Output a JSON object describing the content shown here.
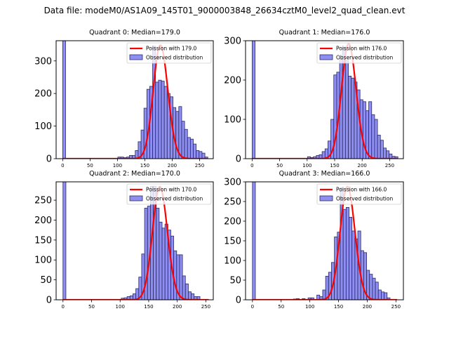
{
  "suptitle": "Data file: modeM0/AS1A09_145T01_9000003848_26634cztM0_level2_quad_clean.evt",
  "colors": {
    "bar_fill": "#7b7bf0",
    "bar_edge": "#2a2a66",
    "poisson_line": "#ff0000"
  },
  "chart_data": [
    {
      "type": "bar",
      "title": "Quadrant 0: Median=179.0",
      "legend": [
        "Poission with 179.0",
        "Observed distribution"
      ],
      "legend_position": "top-right",
      "xlim": [
        -12,
        275
      ],
      "ylim": [
        0,
        362
      ],
      "xticks": [
        0,
        50,
        100,
        150,
        200,
        250
      ],
      "yticks": [
        0,
        100,
        200,
        300
      ],
      "bin_width": 5.3,
      "bin_starts": [
        0,
        100.7,
        106.0,
        111.3,
        116.6,
        121.9,
        127.2,
        132.5,
        137.8,
        143.1,
        148.4,
        153.7,
        159.0,
        164.3,
        169.6,
        174.9,
        180.2,
        185.5,
        190.8,
        196.1,
        201.4,
        206.7,
        212.0,
        217.3,
        222.6,
        227.9,
        233.2,
        238.5,
        243.8,
        249.1,
        254.4,
        259.7
      ],
      "counts": [
        400,
        5,
        5,
        3,
        5,
        10,
        10,
        25,
        52,
        88,
        155,
        213,
        222,
        345,
        235,
        241,
        238,
        222,
        200,
        190,
        157,
        145,
        160,
        115,
        90,
        65,
        60,
        45,
        25,
        22,
        17,
        5
      ],
      "poisson_mean": 179.0,
      "poisson_peak": 348,
      "poisson_range": [
        0,
        265
      ]
    },
    {
      "type": "bar",
      "title": "Quadrant 1: Median=176.0",
      "legend": [
        "Poission with 176.0",
        "Observed distribution"
      ],
      "legend_position": "top-right",
      "xlim": [
        -12,
        275
      ],
      "ylim": [
        0,
        300
      ],
      "xticks": [
        0,
        50,
        100,
        150,
        200,
        250
      ],
      "yticks": [
        0,
        100,
        200,
        300
      ],
      "bin_width": 5.3,
      "bin_starts": [
        0,
        26.5,
        68.9,
        100.7,
        106.0,
        111.3,
        116.6,
        121.9,
        127.2,
        132.5,
        137.8,
        143.1,
        148.4,
        153.7,
        159.0,
        164.3,
        169.6,
        174.9,
        180.2,
        185.5,
        190.8,
        196.1,
        201.4,
        206.7,
        212.0,
        217.3,
        222.6,
        227.9,
        233.2,
        238.5,
        243.8,
        249.1,
        254.4,
        259.7
      ],
      "counts": [
        400,
        1,
        1,
        5,
        3,
        5,
        8,
        10,
        18,
        25,
        45,
        100,
        213,
        220,
        255,
        283,
        250,
        210,
        205,
        195,
        175,
        150,
        145,
        122,
        145,
        112,
        100,
        60,
        47,
        27,
        20,
        12,
        6,
        5
      ],
      "poisson_mean": 176.0,
      "poisson_peak": 292,
      "poisson_range": [
        0,
        265
      ]
    },
    {
      "type": "bar",
      "title": "Quadrant 2: Median=170.0",
      "legend": [
        "Poission with 170.0",
        "Observed distribution"
      ],
      "legend_position": "top-right",
      "xlim": [
        -12,
        263
      ],
      "ylim": [
        0,
        296
      ],
      "xticks": [
        0,
        50,
        100,
        150,
        200,
        250
      ],
      "yticks": [
        0,
        50,
        100,
        150,
        200,
        250
      ],
      "bin_width": 5.1,
      "bin_starts": [
        0,
        102.0,
        107.1,
        112.2,
        117.3,
        122.4,
        127.5,
        132.6,
        137.7,
        142.8,
        147.9,
        153.0,
        158.1,
        163.2,
        168.3,
        173.4,
        178.5,
        183.6,
        188.7,
        193.8,
        198.9,
        204.0,
        209.1,
        214.2,
        219.3,
        224.4,
        229.5,
        234.6,
        239.7
      ],
      "counts": [
        400,
        4,
        5,
        8,
        10,
        15,
        28,
        57,
        115,
        230,
        235,
        285,
        285,
        230,
        195,
        180,
        190,
        175,
        160,
        123,
        113,
        113,
        60,
        40,
        20,
        15,
        8,
        8,
        0
      ],
      "poisson_mean": 170.0,
      "poisson_peak": 284,
      "poisson_range": [
        0,
        255
      ]
    },
    {
      "type": "bar",
      "title": "Quadrant 3: Median=166.0",
      "legend": [
        "Poission with 166.0",
        "Observed distribution"
      ],
      "legend_position": "top-right",
      "xlim": [
        -12,
        263
      ],
      "ylim": [
        0,
        300
      ],
      "xticks": [
        0,
        50,
        100,
        150,
        200,
        250
      ],
      "yticks": [
        0,
        50,
        100,
        150,
        200,
        250,
        300
      ],
      "bin_width": 5.1,
      "bin_starts": [
        0,
        56.1,
        71.4,
        76.5,
        86.7,
        96.9,
        102.0,
        112.2,
        117.3,
        122.4,
        127.5,
        132.6,
        137.7,
        142.8,
        147.9,
        153.0,
        158.1,
        163.2,
        168.3,
        173.4,
        178.5,
        183.6,
        188.7,
        193.8,
        198.9,
        204.0,
        209.1,
        214.2,
        219.3,
        224.4,
        229.5,
        234.6
      ],
      "counts": [
        400,
        1,
        2,
        3,
        3,
        5,
        5,
        12,
        8,
        25,
        60,
        70,
        95,
        160,
        172,
        285,
        230,
        235,
        210,
        175,
        155,
        175,
        125,
        120,
        75,
        65,
        55,
        45,
        25,
        20,
        18,
        5
      ],
      "poisson_mean": 166.0,
      "poisson_peak": 288,
      "poisson_range": [
        0,
        252
      ]
    }
  ]
}
